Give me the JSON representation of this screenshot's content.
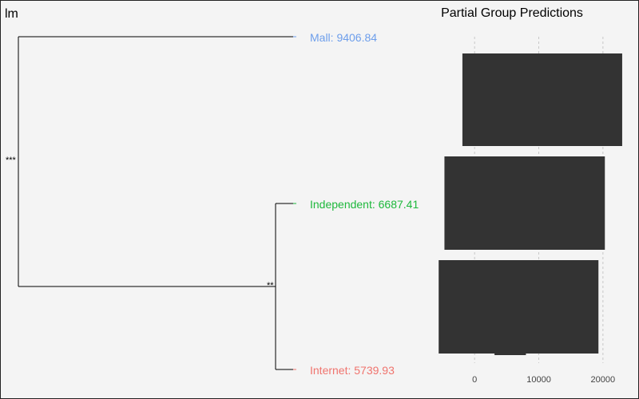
{
  "corner_label": "lm",
  "chart_data": [
    {
      "type": "dendrogram",
      "leaves": [
        {
          "name": "Mall",
          "value": 9406.84,
          "label": "Mall: 9406.84",
          "color": "#6d9eeb"
        },
        {
          "name": "Independent",
          "value": 6687.41,
          "label": "Independent: 6687.41",
          "color": "#1eb83c"
        },
        {
          "name": "Internet",
          "value": 5739.93,
          "label": "Internet: 5739.93",
          "color": "#f0746e"
        }
      ],
      "merges": [
        {
          "children": [
            "Independent",
            "Internet"
          ],
          "significance": "**"
        },
        {
          "children": [
            "Mall",
            "Independent+Internet"
          ],
          "significance": "***"
        }
      ]
    },
    {
      "type": "boxplot",
      "title": "Partial Group Predictions",
      "orientation": "horizontal",
      "xlim": [
        -5500,
        24500
      ],
      "x_ticks": [
        0,
        10000,
        20000
      ],
      "x_tick_labels": [
        "0",
        "10000",
        "20000"
      ],
      "grid": "vertical dashed",
      "box_color": "#333333",
      "groups": [
        {
          "name": "Mall",
          "q1": -1900,
          "q3": 23000,
          "whisker_low": -1900,
          "whisker_high": 23000
        },
        {
          "name": "Independent",
          "q1": -4700,
          "q3": 20300,
          "whisker_low": -4700,
          "whisker_high": 20300
        },
        {
          "name": "Internet",
          "q1": -5600,
          "q3": 19300,
          "whisker_low": -5600,
          "whisker_high": 19300,
          "extra_segment": [
            3100,
            8000
          ]
        }
      ]
    }
  ]
}
